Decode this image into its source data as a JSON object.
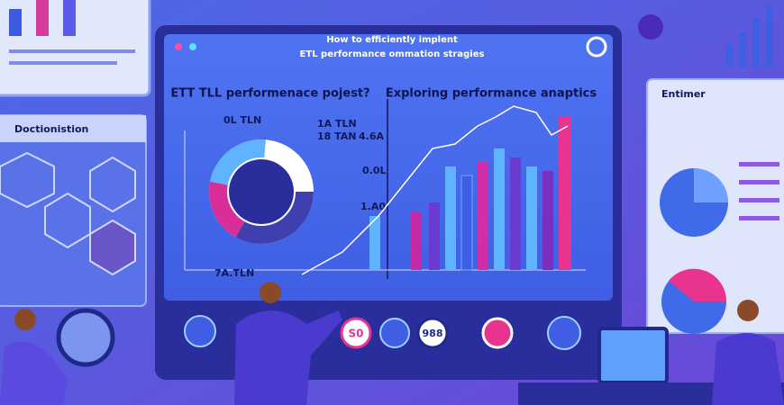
{
  "header": {
    "title_line1": "How to efficiently implent",
    "title_line2": "ETL performance ommation stragies"
  },
  "left_chart": {
    "title": "ETT TLL performenace pojest?",
    "labels": [
      "0L TLN",
      "1A TLN",
      "18 TAN",
      "7A.TLN"
    ]
  },
  "right_chart": {
    "title": "Exploring performance anaptics",
    "axis_labels": [
      "4.6A",
      "0.0L",
      "1.A0"
    ]
  },
  "side_panels": {
    "left": "Doctionistion",
    "right": "Entimer"
  },
  "buttons": [
    "S0",
    "988"
  ]
}
